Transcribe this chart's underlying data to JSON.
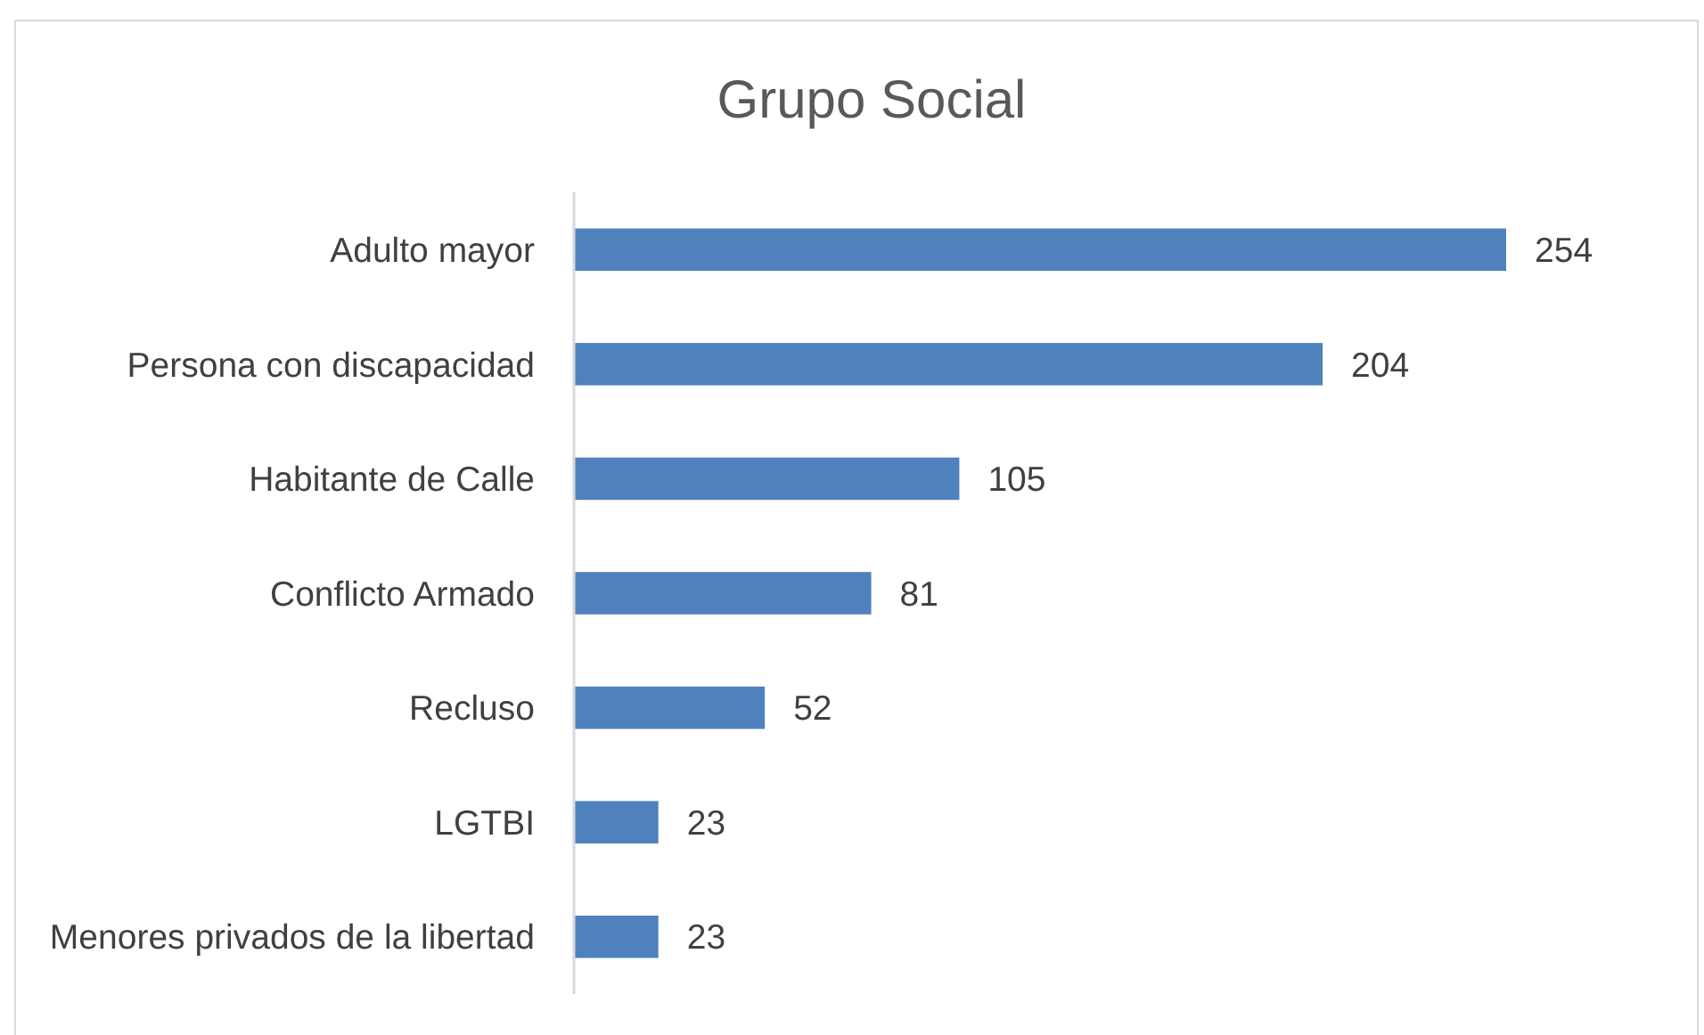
{
  "chart_data": {
    "type": "bar",
    "orientation": "horizontal",
    "title": "Grupo Social",
    "categories": [
      "Adulto mayor",
      "Persona con discapacidad",
      "Habitante de Calle",
      "Conflicto Armado",
      "Recluso",
      "LGTBI",
      "Menores privados de la libertad"
    ],
    "values": [
      254,
      204,
      105,
      81,
      52,
      23,
      23
    ],
    "color": "#4f81bd",
    "data_labels": true
  }
}
